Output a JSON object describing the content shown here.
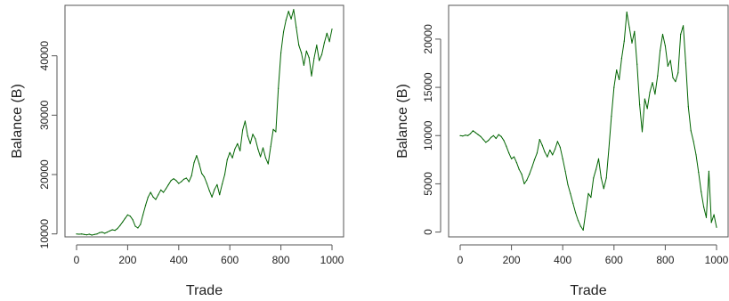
{
  "chart_data": [
    {
      "type": "line",
      "xlabel": "Trade",
      "ylabel": "Balance (B)",
      "xlim": [
        0,
        1000
      ],
      "ylim": [
        9500,
        48500
      ],
      "xticks": [
        0,
        200,
        400,
        600,
        800,
        1000
      ],
      "yticks": [
        10000,
        20000,
        30000,
        40000
      ],
      "color": "#006400",
      "grid": false,
      "legend": "none",
      "series": [
        {
          "x": [
            0,
            10,
            20,
            30,
            40,
            50,
            60,
            70,
            80,
            90,
            100,
            110,
            120,
            130,
            140,
            150,
            160,
            170,
            180,
            190,
            200,
            210,
            220,
            230,
            240,
            250,
            260,
            270,
            280,
            290,
            300,
            310,
            320,
            330,
            340,
            350,
            360,
            370,
            380,
            390,
            400,
            410,
            420,
            430,
            440,
            450,
            460,
            470,
            480,
            490,
            500,
            510,
            520,
            530,
            540,
            550,
            560,
            570,
            580,
            590,
            600,
            610,
            620,
            630,
            640,
            650,
            660,
            670,
            680,
            690,
            700,
            710,
            720,
            730,
            740,
            750,
            760,
            770,
            780,
            790,
            800,
            810,
            820,
            830,
            840,
            850,
            860,
            870,
            880,
            890,
            900,
            910,
            920,
            930,
            940,
            950,
            960,
            970,
            980,
            990,
            1000
          ],
          "y": [
            10000,
            9950,
            10000,
            9900,
            9850,
            9950,
            9800,
            9900,
            10000,
            10200,
            10300,
            10100,
            10300,
            10500,
            10700,
            10600,
            10900,
            11400,
            12000,
            12600,
            13200,
            13000,
            12400,
            11300,
            11000,
            11600,
            13200,
            14800,
            16200,
            17000,
            16200,
            15800,
            16600,
            17400,
            17000,
            17600,
            18300,
            19000,
            19300,
            19000,
            18500,
            18800,
            19200,
            19400,
            18800,
            19800,
            22000,
            23200,
            21800,
            20200,
            19600,
            18500,
            17300,
            16200,
            17500,
            18300,
            16600,
            18400,
            20000,
            22500,
            23700,
            22800,
            24300,
            25200,
            24000,
            27500,
            29000,
            26500,
            25200,
            26800,
            26000,
            24300,
            23000,
            24500,
            22800,
            21800,
            24700,
            27600,
            27200,
            34500,
            40500,
            44000,
            46000,
            47500,
            46200,
            47800,
            44800,
            41800,
            40500,
            38400,
            40800,
            39700,
            36600,
            39600,
            41800,
            39200,
            40200,
            42200,
            43800,
            42400,
            44500
          ]
        }
      ]
    },
    {
      "type": "line",
      "xlabel": "Trade",
      "ylabel": "Balance (B)",
      "xlim": [
        0,
        1000
      ],
      "ylim": [
        -500,
        23500
      ],
      "xticks": [
        0,
        200,
        400,
        600,
        800,
        1000
      ],
      "yticks": [
        0,
        5000,
        10000,
        15000,
        20000
      ],
      "color": "#006400",
      "grid": false,
      "legend": "none",
      "series": [
        {
          "x": [
            0,
            10,
            20,
            30,
            40,
            50,
            60,
            70,
            80,
            90,
            100,
            110,
            120,
            130,
            140,
            150,
            160,
            170,
            180,
            190,
            200,
            210,
            220,
            230,
            240,
            250,
            260,
            270,
            280,
            290,
            300,
            310,
            320,
            330,
            340,
            350,
            360,
            370,
            380,
            390,
            400,
            410,
            420,
            430,
            440,
            450,
            460,
            470,
            480,
            490,
            500,
            510,
            520,
            530,
            540,
            550,
            560,
            570,
            580,
            590,
            600,
            610,
            620,
            630,
            640,
            650,
            660,
            670,
            680,
            690,
            700,
            710,
            720,
            730,
            740,
            750,
            760,
            770,
            780,
            790,
            800,
            810,
            820,
            830,
            840,
            850,
            860,
            870,
            880,
            890,
            900,
            910,
            920,
            930,
            940,
            950,
            960,
            970,
            980,
            990,
            1000
          ],
          "y": [
            10000,
            9950,
            10050,
            10000,
            10200,
            10500,
            10300,
            10100,
            9900,
            9600,
            9300,
            9500,
            9800,
            10000,
            9700,
            10100,
            9900,
            9500,
            8900,
            8200,
            7600,
            7800,
            7200,
            6500,
            6000,
            5000,
            5400,
            6000,
            6700,
            7500,
            8200,
            9600,
            9000,
            8300,
            7800,
            8500,
            8000,
            8600,
            9400,
            8800,
            7600,
            6300,
            4900,
            4000,
            3000,
            2000,
            1200,
            600,
            200,
            2100,
            4000,
            3600,
            5600,
            6500,
            7600,
            5600,
            4500,
            5600,
            8600,
            12000,
            15000,
            16800,
            15800,
            18000,
            19800,
            22800,
            21200,
            19600,
            20800,
            17400,
            13200,
            10400,
            13800,
            12800,
            14500,
            15500,
            14300,
            16200,
            18800,
            20500,
            19300,
            17200,
            17800,
            16000,
            15600,
            16500,
            20500,
            21400,
            17500,
            13000,
            10500,
            9400,
            8000,
            6200,
            4200,
            2600,
            1500,
            6300,
            1000,
            1800,
            500
          ]
        }
      ]
    }
  ]
}
